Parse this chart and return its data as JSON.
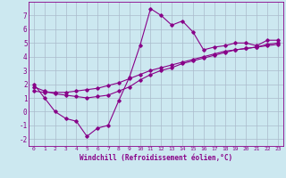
{
  "xlabel": "Windchill (Refroidissement éolien,°C)",
  "bg_color": "#cce8f0",
  "grid_color": "#aabbcc",
  "line_color": "#880088",
  "x_data": [
    0,
    1,
    2,
    3,
    4,
    5,
    6,
    7,
    8,
    9,
    10,
    11,
    12,
    13,
    14,
    15,
    16,
    17,
    18,
    19,
    20,
    21,
    22,
    23
  ],
  "y_zigzag": [
    2.0,
    1.0,
    0.0,
    -0.5,
    -0.7,
    -1.8,
    -1.2,
    -1.0,
    0.8,
    2.5,
    4.8,
    7.5,
    7.0,
    6.3,
    6.6,
    5.8,
    4.5,
    4.7,
    4.8,
    5.0,
    5.0,
    4.8,
    5.2,
    5.2
  ],
  "y_line1": [
    1.8,
    1.5,
    1.3,
    1.2,
    1.1,
    1.0,
    1.1,
    1.2,
    1.5,
    1.8,
    2.3,
    2.7,
    3.0,
    3.2,
    3.5,
    3.7,
    3.9,
    4.1,
    4.3,
    4.5,
    4.6,
    4.7,
    4.9,
    5.0
  ],
  "y_line2": [
    1.5,
    1.4,
    1.4,
    1.4,
    1.5,
    1.6,
    1.7,
    1.9,
    2.1,
    2.4,
    2.7,
    3.0,
    3.2,
    3.4,
    3.6,
    3.8,
    4.0,
    4.2,
    4.4,
    4.5,
    4.6,
    4.7,
    4.8,
    4.9
  ],
  "ylim": [
    -2.5,
    8.0
  ],
  "xlim": [
    -0.5,
    23.5
  ],
  "yticks": [
    -2,
    -1,
    0,
    1,
    2,
    3,
    4,
    5,
    6,
    7
  ],
  "xticks": [
    0,
    1,
    2,
    3,
    4,
    5,
    6,
    7,
    8,
    9,
    10,
    11,
    12,
    13,
    14,
    15,
    16,
    17,
    18,
    19,
    20,
    21,
    22,
    23
  ]
}
